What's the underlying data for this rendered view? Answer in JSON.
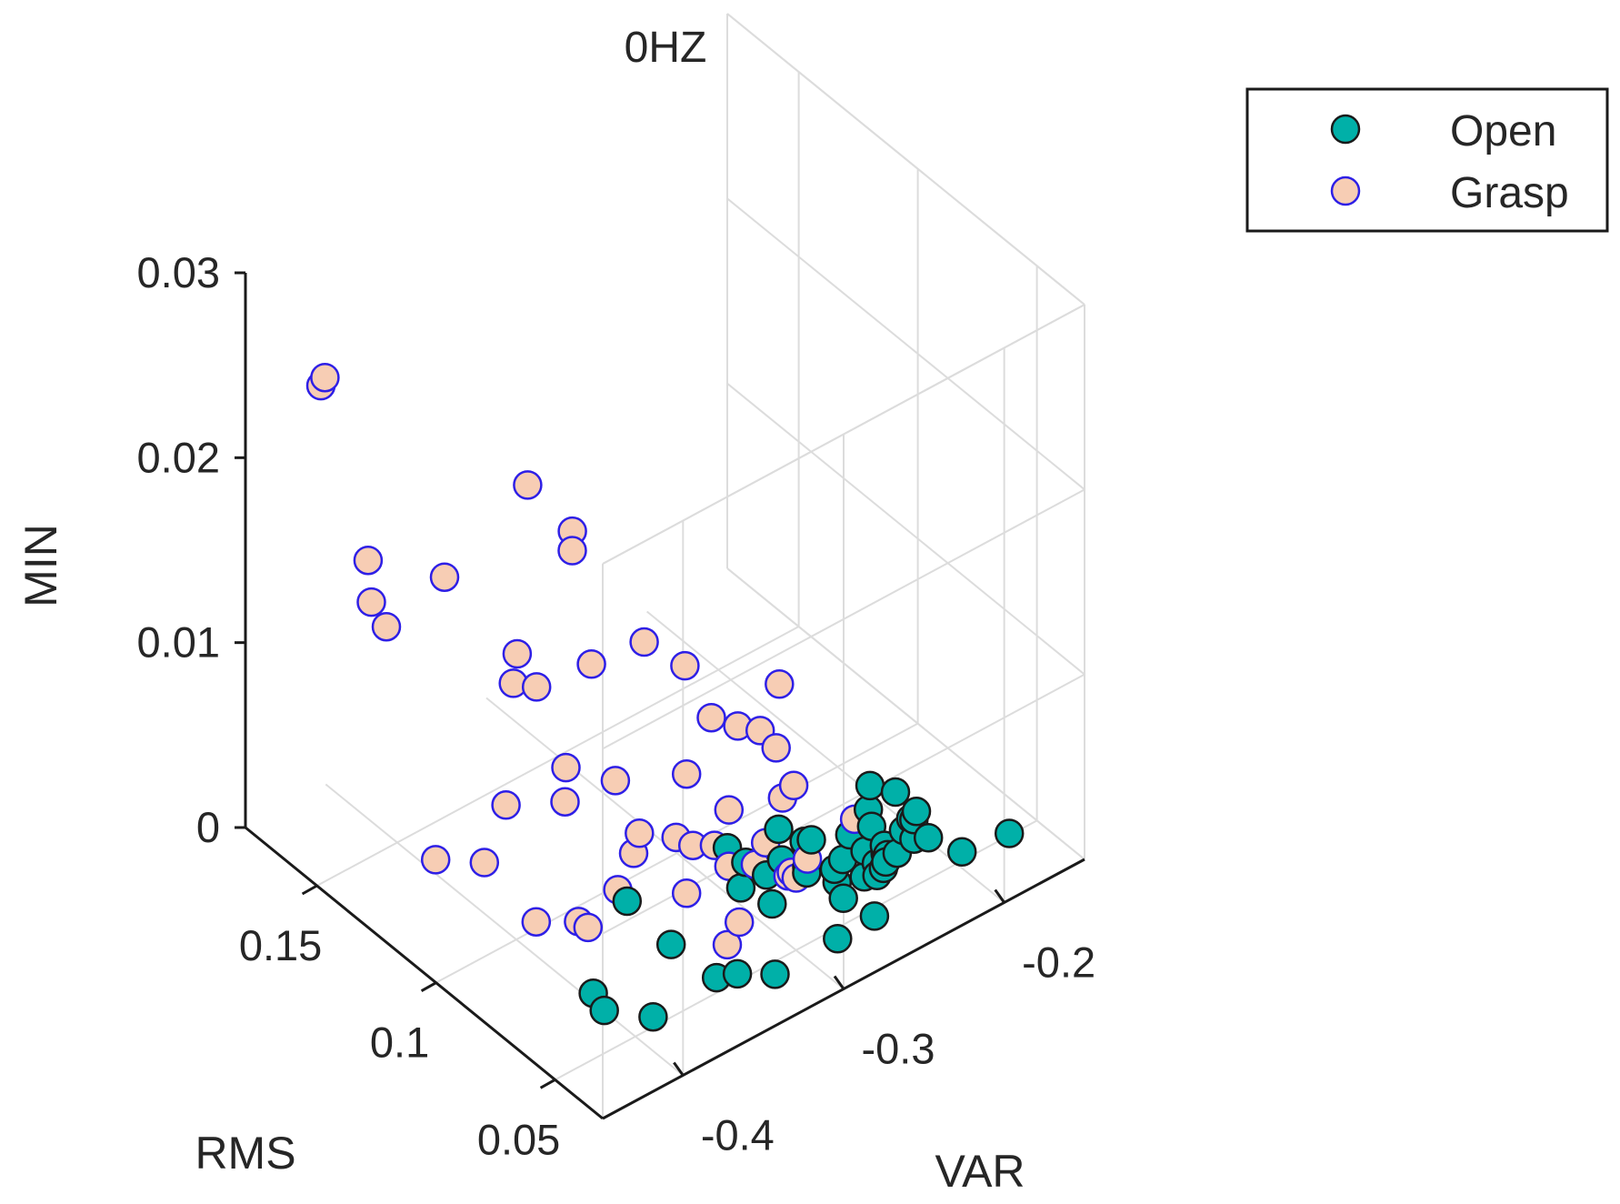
{
  "chart_data": {
    "type": "scatter",
    "title": "0HZ",
    "xlabel": "RMS",
    "ylabel": "VAR",
    "zlabel": "MIN",
    "xlim": [
      0.03,
      0.18
    ],
    "ylim": [
      -0.45,
      -0.15
    ],
    "zlim": [
      0,
      0.03
    ],
    "x_ticks": [
      0.05,
      0.1,
      0.15
    ],
    "x_tick_labels": [
      "0.05",
      "0.1",
      "0.15"
    ],
    "y_ticks": [
      -0.4,
      -0.3,
      -0.2
    ],
    "y_tick_labels": [
      "-0.4",
      "-0.3",
      "-0.2"
    ],
    "z_ticks": [
      0,
      0.01,
      0.02,
      0.03
    ],
    "z_tick_labels": [
      "0",
      "0.01",
      "0.02",
      "0.03"
    ],
    "grid": true,
    "legend_position": "top-right outside",
    "series": [
      {
        "name": "Open",
        "color": "#00b0a8",
        "edge_color": "#1a1a1a",
        "points": [
          [
            0.046,
            -0.319,
            0.0
          ],
          [
            0.042,
            -0.286,
            0.0008
          ],
          [
            0.048,
            -0.279,
            0.0036
          ],
          [
            0.04,
            -0.266,
            0.0013
          ],
          [
            0.044,
            -0.253,
            0.0032
          ],
          [
            0.053,
            -0.345,
            0.0003
          ],
          [
            0.049,
            -0.338,
            0.0006
          ],
          [
            0.052,
            -0.386,
            0.0002
          ],
          [
            0.057,
            -0.409,
            0.0011
          ],
          [
            0.049,
            -0.272,
            0.0016
          ],
          [
            0.064,
            -0.357,
            0.0015
          ],
          [
            0.058,
            -0.303,
            0.0018
          ],
          [
            0.047,
            -0.254,
            0.0022
          ],
          [
            0.045,
            -0.225,
            0.0031
          ],
          [
            0.043,
            -0.207,
            0.0017
          ],
          [
            0.038,
            -0.185,
            0.0022
          ],
          [
            0.067,
            -0.401,
            0.0006
          ],
          [
            0.059,
            -0.321,
            0.0034
          ],
          [
            0.064,
            -0.322,
            0.0051
          ],
          [
            0.065,
            -0.309,
            0.0036
          ],
          [
            0.056,
            -0.286,
            0.0046
          ],
          [
            0.051,
            -0.265,
            0.0045
          ],
          [
            0.05,
            -0.245,
            0.0031
          ],
          [
            0.044,
            -0.247,
            0.0067
          ],
          [
            0.047,
            -0.233,
            0.0043
          ],
          [
            0.05,
            -0.237,
            0.0023
          ],
          [
            0.047,
            -0.231,
            0.0031
          ],
          [
            0.054,
            -0.247,
            0.0038
          ],
          [
            0.056,
            -0.262,
            0.0025
          ],
          [
            0.047,
            -0.25,
            0.0024
          ],
          [
            0.063,
            -0.274,
            0.0019
          ],
          [
            0.059,
            -0.28,
            0.0023
          ],
          [
            0.058,
            -0.297,
            0.0039
          ],
          [
            0.053,
            -0.286,
            0.005
          ],
          [
            0.045,
            -0.234,
            0.0045
          ],
          [
            0.071,
            -0.374,
            0.0039
          ],
          [
            0.055,
            -0.267,
            0.0016
          ],
          [
            0.051,
            -0.256,
            0.0018
          ],
          [
            0.052,
            -0.254,
            0.003
          ],
          [
            0.05,
            -0.243,
            0.0025
          ],
          [
            0.054,
            -0.249,
            0.0048
          ],
          [
            0.048,
            -0.236,
            0.0037
          ],
          [
            0.052,
            -0.247,
            0.002
          ],
          [
            0.046,
            -0.231,
            0.0047
          ],
          [
            0.053,
            -0.24,
            0.0021
          ],
          [
            0.06,
            -0.296,
            0.0053
          ],
          [
            0.056,
            -0.245,
            0.0057
          ],
          [
            0.061,
            -0.302,
            0.003
          ]
        ]
      },
      {
        "name": "Grasp",
        "color": "#f7cdb4",
        "edge_color": "#2e1fe6",
        "points": [
          [
            0.148,
            -0.448,
            0.0276
          ],
          [
            0.149,
            -0.449,
            0.0271
          ],
          [
            0.102,
            -0.39,
            0.0239
          ],
          [
            0.094,
            -0.374,
            0.0215
          ],
          [
            0.092,
            -0.377,
            0.0208
          ],
          [
            0.142,
            -0.43,
            0.0175
          ],
          [
            0.12,
            -0.415,
            0.0182
          ],
          [
            0.144,
            -0.425,
            0.0148
          ],
          [
            0.135,
            -0.429,
            0.0146
          ],
          [
            0.103,
            -0.395,
            0.0149
          ],
          [
            0.088,
            -0.371,
            0.0148
          ],
          [
            0.069,
            -0.341,
            0.0153
          ],
          [
            0.078,
            -0.353,
            0.0162
          ],
          [
            0.11,
            -0.387,
            0.0122
          ],
          [
            0.105,
            -0.38,
            0.0122
          ],
          [
            0.059,
            -0.297,
            0.0133
          ],
          [
            0.068,
            -0.326,
            0.0119
          ],
          [
            0.061,
            -0.306,
            0.011
          ],
          [
            0.065,
            -0.314,
            0.0112
          ],
          [
            0.057,
            -0.302,
            0.0103
          ],
          [
            0.069,
            -0.34,
            0.0094
          ],
          [
            0.08,
            -0.368,
            0.0092
          ],
          [
            0.094,
            -0.378,
            0.0089
          ],
          [
            0.064,
            -0.321,
            0.0071
          ],
          [
            0.057,
            -0.298,
            0.0074
          ],
          [
            0.091,
            -0.383,
            0.0076
          ],
          [
            0.055,
            -0.294,
            0.0081
          ],
          [
            0.105,
            -0.399,
            0.0067
          ],
          [
            0.078,
            -0.356,
            0.006
          ],
          [
            0.07,
            -0.345,
            0.0061
          ],
          [
            0.067,
            -0.339,
            0.0057
          ],
          [
            0.064,
            -0.33,
            0.0056
          ],
          [
            0.054,
            -0.313,
            0.006
          ],
          [
            0.075,
            -0.364,
            0.0056
          ],
          [
            0.062,
            -0.324,
            0.0044
          ],
          [
            0.117,
            -0.425,
            0.0037
          ],
          [
            0.108,
            -0.408,
            0.0037
          ],
          [
            0.083,
            -0.362,
            0.0027
          ],
          [
            0.061,
            -0.309,
            0.0039
          ],
          [
            0.071,
            -0.337,
            0.0026
          ],
          [
            0.058,
            -0.288,
            0.0025
          ],
          [
            0.052,
            -0.302,
            0.0039
          ],
          [
            0.051,
            -0.262,
            0.0052
          ],
          [
            0.078,
            -0.388,
            0.0024
          ],
          [
            0.056,
            -0.294,
            0.0033
          ],
          [
            0.054,
            -0.287,
            0.0039
          ],
          [
            0.093,
            -0.398,
            0.0016
          ],
          [
            0.086,
            -0.382,
            0.0016
          ],
          [
            0.059,
            -0.322,
            0.0016
          ],
          [
            0.062,
            -0.325,
            0.0002
          ]
        ]
      }
    ]
  }
}
